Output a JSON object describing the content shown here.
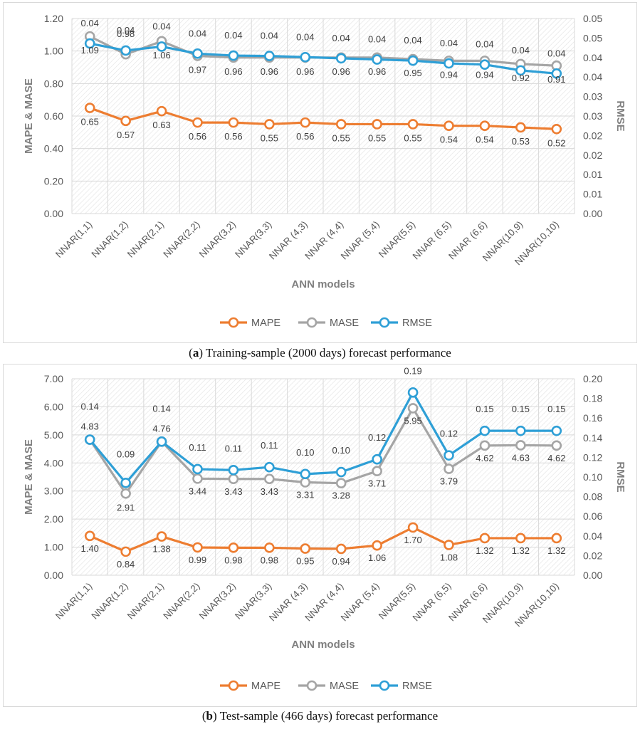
{
  "panels": [
    {
      "caption_letter": "a",
      "caption_text": " Training-sample (2000 days) forecast performance",
      "chart_data": {
        "type": "line",
        "categories": [
          "NNAR(1,1)",
          "NNAR(1,2)",
          "NNAR(2,1)",
          "NNAR(2,2)",
          "NNAR(3,2)",
          "NNAR(3,3)",
          "NNAR (4,3)",
          "NNAR (4,4)",
          "NNAR (5,4)",
          "NNAR(5,5)",
          "NNAR (6,5)",
          "NNAR (6,6)",
          "NNAR(10,9)",
          "NNAR(10,10)"
        ],
        "xlabel": "ANN models",
        "ylabel": "MAPE & MASE",
        "y2label": "RMSE",
        "ylim": [
          0,
          1.2
        ],
        "yticks": [
          "0.00",
          "0.20",
          "0.40",
          "0.60",
          "0.80",
          "1.00",
          "1.20"
        ],
        "y2lim": [
          0,
          0.05
        ],
        "y2ticks": [
          "0.00",
          "0.01",
          "0.01",
          "0.02",
          "0.02",
          "0.03",
          "0.03",
          "0.04",
          "0.04",
          "0.05",
          "0.05"
        ],
        "grid": true,
        "legend_position": "bottom",
        "series": [
          {
            "name": "MAPE",
            "axis": "left",
            "color": "#ed7d31",
            "values": [
              0.65,
              0.57,
              0.63,
              0.56,
              0.56,
              0.55,
              0.56,
              0.55,
              0.55,
              0.55,
              0.54,
              0.54,
              0.53,
              0.52
            ],
            "labels": [
              "0.65",
              "0.57",
              "0.63",
              "0.56",
              "0.56",
              "0.55",
              "0.56",
              "0.55",
              "0.55",
              "0.55",
              "0.54",
              "0.54",
              "0.53",
              "0.52"
            ]
          },
          {
            "name": "MASE",
            "axis": "left",
            "color": "#a5a5a5",
            "values": [
              1.09,
              0.98,
              1.06,
              0.97,
              0.96,
              0.96,
              0.96,
              0.96,
              0.96,
              0.95,
              0.94,
              0.94,
              0.92,
              0.91
            ],
            "labels": [
              "1.09",
              "0.98",
              "1.06",
              "0.97",
              "0.96",
              "0.96",
              "0.96",
              "0.96",
              "0.96",
              "0.95",
              "0.94",
              "0.94",
              "0.92",
              "0.91"
            ]
          },
          {
            "name": "RMSE",
            "axis": "right",
            "color": "#2e9fd6",
            "values": [
              0.0436,
              0.0418,
              0.0428,
              0.041,
              0.0405,
              0.0404,
              0.0401,
              0.0398,
              0.0395,
              0.0392,
              0.0385,
              0.0382,
              0.0367,
              0.0359
            ],
            "labels": [
              "0.04",
              "0.04",
              "0.04",
              "0.04",
              "0.04",
              "0.04",
              "0.04",
              "0.04",
              "0.04",
              "0.04",
              "0.04",
              "0.04",
              "0.04",
              "0.04"
            ]
          }
        ]
      }
    },
    {
      "caption_letter": "b",
      "caption_text": " Test-sample (466 days) forecast performance",
      "chart_data": {
        "type": "line",
        "categories": [
          "NNAR(1,1)",
          "NNAR(1,2)",
          "NNAR(2,1)",
          "NNAR(2,2)",
          "NNAR(3,2)",
          "NNAR(3,3)",
          "NNAR (4,3)",
          "NNAR (4,4)",
          "NNAR (5,4)",
          "NNAR(5,5)",
          "NNAR (6,5)",
          "NNAR (6,6)",
          "NNAR(10,9)",
          "NNAR(10,10)"
        ],
        "xlabel": "ANN models",
        "ylabel": "MAPE & MASE",
        "y2label": "RMSE",
        "ylim": [
          0,
          7
        ],
        "yticks": [
          "0.00",
          "1.00",
          "2.00",
          "3.00",
          "4.00",
          "5.00",
          "6.00",
          "7.00"
        ],
        "y2lim": [
          0,
          0.2
        ],
        "y2ticks": [
          "0.00",
          "0.02",
          "0.04",
          "0.06",
          "0.08",
          "0.10",
          "0.12",
          "0.14",
          "0.16",
          "0.18",
          "0.20"
        ],
        "grid": true,
        "legend_position": "bottom",
        "series": [
          {
            "name": "MAPE",
            "axis": "left",
            "color": "#ed7d31",
            "values": [
              1.4,
              0.84,
              1.38,
              0.99,
              0.98,
              0.98,
              0.95,
              0.94,
              1.06,
              1.7,
              1.08,
              1.32,
              1.32,
              1.32
            ],
            "labels": [
              "1.40",
              "0.84",
              "1.38",
              "0.99",
              "0.98",
              "0.98",
              "0.95",
              "0.94",
              "1.06",
              "1.70",
              "1.08",
              "1.32",
              "1.32",
              "1.32"
            ]
          },
          {
            "name": "MASE",
            "axis": "left",
            "color": "#a5a5a5",
            "values": [
              4.83,
              2.91,
              4.76,
              3.44,
              3.43,
              3.43,
              3.31,
              3.28,
              3.71,
              5.95,
              3.79,
              4.62,
              4.63,
              4.62
            ],
            "labels": [
              "4.83",
              "2.91",
              "4.76",
              "3.44",
              "3.43",
              "3.43",
              "3.31",
              "3.28",
              "3.71",
              "5.95",
              "3.79",
              "4.62",
              "4.63",
              "4.62"
            ]
          },
          {
            "name": "RMSE",
            "axis": "right",
            "color": "#2e9fd6",
            "values": [
              0.138,
              0.094,
              0.136,
              0.108,
              0.107,
              0.11,
              0.103,
              0.105,
              0.118,
              0.186,
              0.122,
              0.147,
              0.147,
              0.147
            ],
            "labels": [
              "0.14",
              "0.09",
              "0.14",
              "0.11",
              "0.11",
              "0.11",
              "0.10",
              "0.10",
              "0.12",
              "0.19",
              "0.12",
              "0.15",
              "0.15",
              "0.15"
            ]
          }
        ]
      }
    }
  ]
}
